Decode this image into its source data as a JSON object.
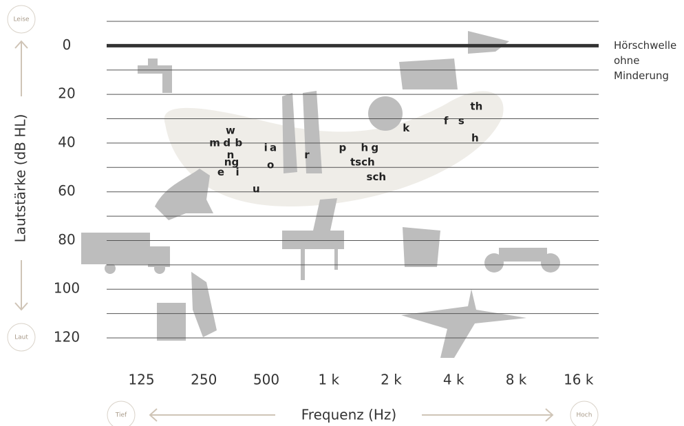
{
  "chart_data": {
    "type": "audiogram",
    "y_label": "Lautstärke (dB HL)",
    "x_label": "Frequenz (Hz)",
    "corner_labels": {
      "top": "Leise",
      "bottom": "Laut",
      "left": "Tief",
      "right": "Hoch"
    },
    "log_x": true,
    "xlim": [
      85,
      20000
    ],
    "xticks": [
      125,
      250,
      500,
      {
        "value": 1000,
        "label": "1 k"
      },
      {
        "value": 2000,
        "label": "2 k"
      },
      {
        "value": 4000,
        "label": "4 k"
      },
      {
        "value": 8000,
        "label": "8 k"
      },
      {
        "value": 16000,
        "label": "16 k"
      }
    ],
    "ylim": [
      -10,
      120
    ],
    "yticks": [
      0,
      20,
      40,
      60,
      80,
      100,
      120
    ],
    "grid_values": [
      -10,
      0,
      10,
      20,
      30,
      40,
      50,
      60,
      70,
      80,
      90,
      100,
      110,
      120
    ],
    "threshold": 0,
    "threshold_label": [
      "Hörschwelle",
      "ohne",
      "Minderung"
    ],
    "sounds": {
      "labels": [
        "w",
        "m",
        "d",
        "b",
        "n",
        "ng",
        "e",
        "i",
        "u",
        "i",
        "a",
        "o",
        "r",
        "p",
        "h",
        "g",
        "tsch",
        "sch",
        "k",
        "f",
        "s",
        "th",
        "h"
      ],
      "x": [
        336,
        282,
        323,
        368,
        336,
        340,
        302,
        363,
        447,
        497,
        540,
        524,
        784,
        1166,
        1488,
        1668,
        1455,
        1694,
        2360,
        3675,
        4355,
        5150,
        5070
      ],
      "values": [
        35,
        40,
        40,
        40,
        45,
        48,
        52,
        52,
        59,
        42,
        42,
        49,
        45,
        42,
        42,
        42,
        48,
        54,
        34,
        31,
        31,
        25,
        38
      ]
    }
  }
}
